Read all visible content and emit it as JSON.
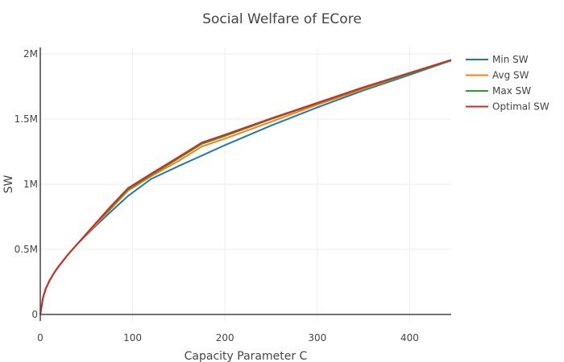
{
  "chart_data": {
    "type": "line",
    "title": "Social Welfare of ECore",
    "xlabel": "Capacity Parameter C",
    "ylabel": "SW",
    "xlim": [
      0,
      445
    ],
    "ylim": [
      -50000,
      2050000
    ],
    "xticks": [
      0,
      100,
      200,
      300,
      400
    ],
    "xtick_labels": [
      "0",
      "100",
      "200",
      "300",
      "400"
    ],
    "yticks": [
      0,
      500000,
      1000000,
      1500000,
      2000000
    ],
    "ytick_labels": [
      "0",
      "0.5M",
      "1M",
      "1.5M",
      "2M"
    ],
    "grid": true,
    "legend_position": "top-right",
    "series": [
      {
        "name": "Min SW",
        "color": "#1f77b4",
        "x": [
          0,
          3,
          6,
          10,
          15,
          20,
          30,
          40,
          50,
          60,
          75,
          95,
          120,
          150,
          175,
          200,
          250,
          300,
          350,
          400,
          445
        ],
        "y": [
          0,
          130000,
          200000,
          260000,
          320000,
          370000,
          460000,
          540000,
          610000,
          680000,
          780000,
          910000,
          1040000,
          1140000,
          1220000,
          1300000,
          1450000,
          1590000,
          1720000,
          1840000,
          1950000
        ]
      },
      {
        "name": "Avg SW",
        "color": "#ff7f0e",
        "x": [
          0,
          3,
          6,
          10,
          15,
          20,
          30,
          40,
          50,
          60,
          75,
          95,
          120,
          150,
          175,
          200,
          250,
          300,
          350,
          400,
          445
        ],
        "y": [
          0,
          130000,
          200000,
          260000,
          320000,
          370000,
          460000,
          540000,
          615000,
          690000,
          800000,
          950000,
          1060000,
          1180000,
          1290000,
          1350000,
          1480000,
          1610000,
          1730000,
          1850000,
          1950000
        ]
      },
      {
        "name": "Max SW",
        "color": "#2ca02c",
        "x": [
          0,
          3,
          6,
          10,
          15,
          20,
          30,
          40,
          50,
          60,
          75,
          95,
          120,
          150,
          175,
          200,
          250,
          300,
          350,
          400,
          445
        ],
        "y": [
          0,
          130000,
          200000,
          260000,
          320000,
          370000,
          460000,
          540000,
          620000,
          700000,
          810000,
          960000,
          1070000,
          1200000,
          1310000,
          1370000,
          1500000,
          1620000,
          1740000,
          1850000,
          1950000
        ]
      },
      {
        "name": "Optimal SW",
        "color": "#d62728",
        "x": [
          0,
          3,
          6,
          10,
          15,
          20,
          30,
          40,
          50,
          60,
          75,
          95,
          120,
          150,
          175,
          200,
          250,
          300,
          350,
          400,
          445
        ],
        "y": [
          0,
          130000,
          200000,
          260000,
          320000,
          370000,
          460000,
          540000,
          620000,
          700000,
          820000,
          970000,
          1080000,
          1210000,
          1320000,
          1380000,
          1505000,
          1625000,
          1745000,
          1855000,
          1955000
        ]
      }
    ]
  }
}
